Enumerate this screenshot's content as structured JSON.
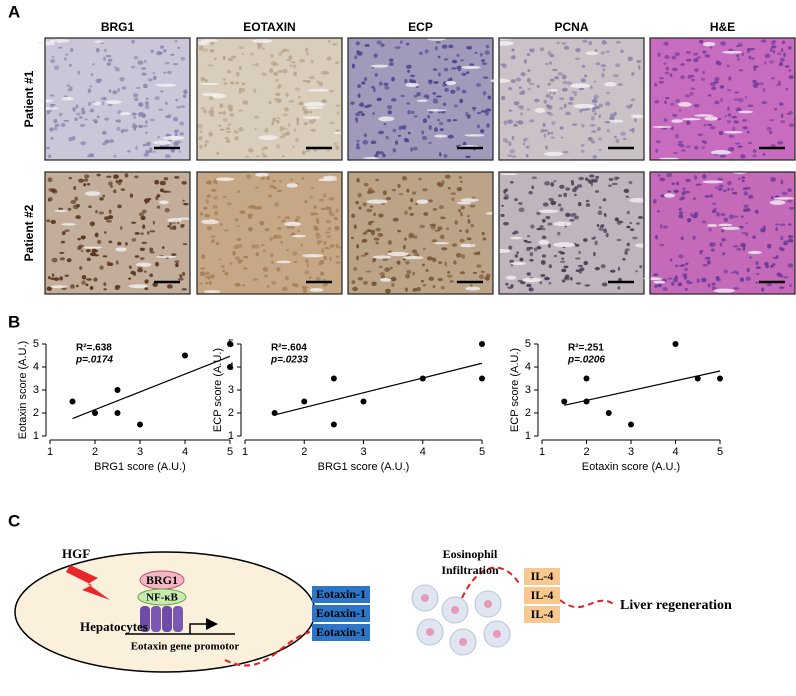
{
  "panel_labels": [
    "A",
    "B",
    "C"
  ],
  "panel_a": {
    "columns": [
      "BRG1",
      "EOTAXIN",
      "ECP",
      "PCNA",
      "H&E"
    ],
    "rows": [
      "Patient #1",
      "Patient #2"
    ]
  },
  "chart_data": [
    {
      "type": "scatter",
      "x_label": "BRG1 score (A.U.)",
      "y_label": "Eotaxin score (A.U.)",
      "annotations": [
        "R²=.638",
        "p=.0174"
      ],
      "x": [
        1.5,
        2,
        2.5,
        2.5,
        3,
        4,
        5,
        5
      ],
      "values": [
        2.5,
        2,
        3,
        2,
        1.5,
        4.5,
        5,
        4
      ],
      "color": "#000000",
      "xlim": [
        1,
        5
      ],
      "ylim": [
        1,
        5
      ],
      "xticks": [
        1,
        2,
        3,
        4,
        5
      ],
      "yticks": [
        1,
        2,
        3,
        4,
        5
      ]
    },
    {
      "type": "scatter",
      "x_label": "BRG1 score (A.U.)",
      "y_label": "ECP score (A.U.)",
      "annotations": [
        "R²=.604",
        "p=.0233"
      ],
      "x": [
        1.5,
        2,
        2.5,
        2.5,
        3,
        4,
        5,
        5
      ],
      "values": [
        2,
        2.5,
        3.5,
        1.5,
        2.5,
        3.5,
        5,
        3.5
      ],
      "color": "#000000",
      "xlim": [
        1,
        5
      ],
      "ylim": [
        1,
        5
      ],
      "xticks": [
        1,
        2,
        3,
        4,
        5
      ],
      "yticks": [
        1,
        2,
        3,
        4,
        5
      ]
    },
    {
      "type": "scatter",
      "x_label": "Eotaxin score (A.U.)",
      "y_label": "ECP score (A.U.)",
      "annotations": [
        "R²=.251",
        "p=.0206"
      ],
      "x": [
        1.5,
        2,
        2,
        2.5,
        3,
        4,
        4.5,
        5
      ],
      "values": [
        2.5,
        3.5,
        2.5,
        2,
        1.5,
        5,
        3.5,
        3.5
      ],
      "color": "#000000",
      "xlim": [
        1,
        5
      ],
      "ylim": [
        1,
        5
      ],
      "xticks": [
        1,
        2,
        3,
        4,
        5
      ],
      "yticks": [
        1,
        2,
        3,
        4,
        5
      ]
    }
  ],
  "diagram": {
    "stimulus": "HGF",
    "cell": "Hepatocytes",
    "factors": [
      "BRG1",
      "NF-κB"
    ],
    "promoter": "Eotaxin gene promotor",
    "secreted": [
      "Eotaxin-1",
      "Eotaxin-1",
      "Eotaxin-1"
    ],
    "infiltration": [
      "Eosinophil",
      "Infiltration"
    ],
    "cytokines": [
      "IL-4",
      "IL-4",
      "IL-4"
    ],
    "outcome": "Liver regeneration"
  }
}
